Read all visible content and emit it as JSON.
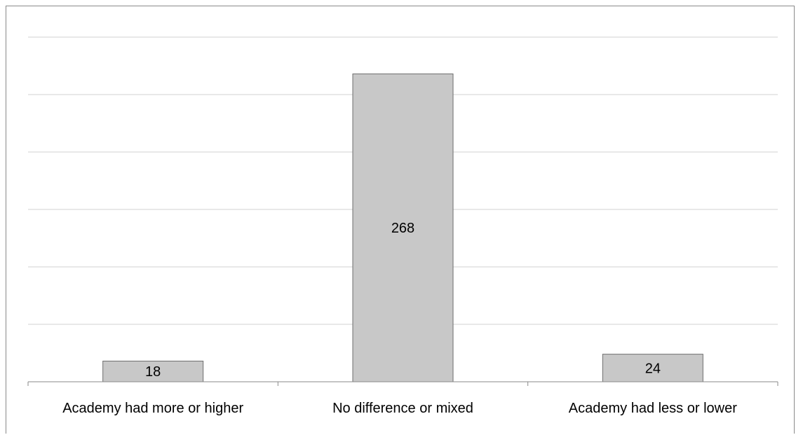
{
  "chart_data": {
    "type": "bar",
    "title": "",
    "xlabel": "",
    "ylabel": "",
    "categories": [
      "Academy had more or higher",
      "No difference or mixed",
      "Academy had less or lower"
    ],
    "values": [
      18,
      268,
      24
    ],
    "data_labels": [
      "18",
      "268",
      "24"
    ],
    "ylim": [
      0,
      300
    ],
    "gridlines": true,
    "y_axis_labels_visible": false,
    "legend": "none",
    "colors": {
      "bar_fill": "#c8c8c8",
      "bar_stroke": "#6e6e6e",
      "grid": "#d0d0d0",
      "axis": "#8a8a8a"
    }
  }
}
